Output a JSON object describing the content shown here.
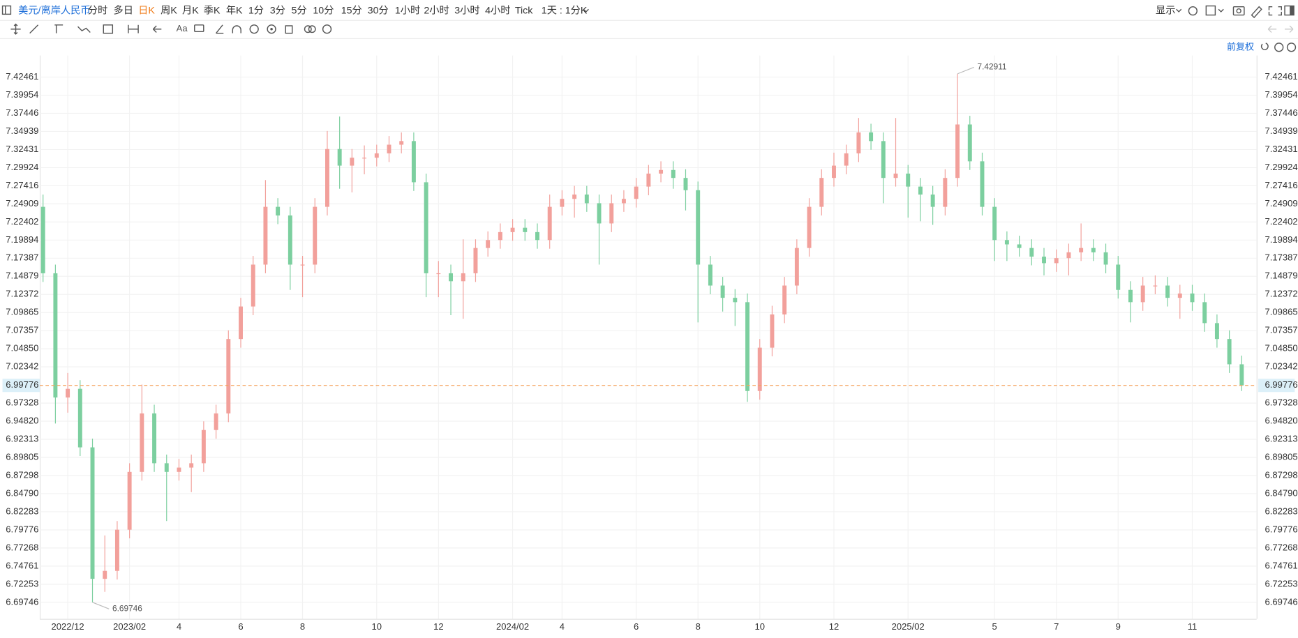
{
  "toolbar": {
    "symbol": "美元/离岸人民币",
    "periods": [
      "分时",
      "多日",
      "日K",
      "周K",
      "月K",
      "季K",
      "年K",
      "1分",
      "3分",
      "5分",
      "10分",
      "15分",
      "30分",
      "1小时",
      "2小时",
      "3小时",
      "4小时",
      "Tick"
    ],
    "active_period": 2,
    "interval": "1天 : 1分K",
    "display": "显示",
    "adjust": "前复权"
  },
  "chart_data": {
    "type": "candlestick",
    "categories": [
      null,
      null,
      "2022/12",
      null,
      null,
      null,
      null,
      "2023/02",
      null,
      null,
      null,
      "4",
      null,
      null,
      null,
      null,
      "6",
      null,
      null,
      null,
      null,
      "8",
      null,
      null,
      null,
      null,
      null,
      "10",
      null,
      null,
      null,
      null,
      "12",
      null,
      null,
      null,
      null,
      null,
      "2024/02",
      null,
      null,
      null,
      "4",
      null,
      null,
      null,
      null,
      null,
      "6",
      null,
      null,
      null,
      null,
      "8",
      null,
      null,
      null,
      null,
      "10",
      null,
      null,
      null,
      null,
      null,
      "12",
      null,
      null,
      null,
      null,
      null,
      "2025/02",
      null,
      null,
      null,
      null,
      null,
      null,
      "5",
      null,
      null,
      null,
      null,
      "7",
      null,
      null,
      null,
      null,
      "9",
      null,
      null,
      null,
      null,
      null,
      "11",
      null,
      null,
      null,
      null
    ],
    "open": [
      7.245,
      7.153,
      6.981,
      6.993,
      6.912,
      6.73,
      6.741,
      6.798,
      6.878,
      6.959,
      6.89,
      6.878,
      6.884,
      6.89,
      6.936,
      6.959,
      7.062,
      7.107,
      7.165,
      7.245,
      7.233,
      7.165,
      7.165,
      7.245,
      7.325,
      7.302,
      7.313,
      7.313,
      7.319,
      7.331,
      7.336,
      7.279,
      7.153,
      7.153,
      7.142,
      7.153,
      7.188,
      7.199,
      7.21,
      7.216,
      7.21,
      7.199,
      7.245,
      7.256,
      7.262,
      7.25,
      7.222,
      7.25,
      7.256,
      7.273,
      7.291,
      7.296,
      7.285,
      7.268,
      7.165,
      7.136,
      7.119,
      7.113,
      6.99,
      7.05,
      7.096,
      7.136,
      7.188,
      7.245,
      7.285,
      7.302,
      7.319,
      7.348,
      7.336,
      7.285,
      7.291,
      7.273,
      7.262,
      7.245,
      7.285,
      7.359,
      7.308,
      7.245,
      7.199,
      7.193,
      7.188,
      7.176,
      7.167,
      7.174,
      7.182,
      7.188,
      7.182,
      7.165,
      7.13,
      7.113,
      7.136,
      7.136,
      7.119,
      7.125,
      7.113,
      7.084,
      7.062,
      7.027
    ],
    "high": [
      7.262,
      7.165,
      7.015,
      7.005,
      6.924,
      6.79,
      6.81,
      6.89,
      6.999,
      6.971,
      6.902,
      6.896,
      6.902,
      6.948,
      6.971,
      7.074,
      7.119,
      7.177,
      7.282,
      7.257,
      7.245,
      7.177,
      7.257,
      7.35,
      7.37,
      7.325,
      7.33,
      7.331,
      7.343,
      7.348,
      7.348,
      7.291,
      7.17,
      7.165,
      7.2,
      7.2,
      7.211,
      7.222,
      7.228,
      7.228,
      7.222,
      7.262,
      7.268,
      7.274,
      7.274,
      7.262,
      7.262,
      7.268,
      7.285,
      7.303,
      7.308,
      7.308,
      7.297,
      7.28,
      7.177,
      7.148,
      7.131,
      7.125,
      7.062,
      7.108,
      7.148,
      7.2,
      7.257,
      7.297,
      7.32,
      7.331,
      7.368,
      7.36,
      7.348,
      7.368,
      7.303,
      7.285,
      7.274,
      7.297,
      7.42911,
      7.371,
      7.32,
      7.257,
      7.211,
      7.205,
      7.2,
      7.188,
      7.186,
      7.194,
      7.222,
      7.2,
      7.194,
      7.177,
      7.142,
      7.148,
      7.15,
      7.148,
      7.137,
      7.137,
      7.125,
      7.096,
      7.074,
      7.039
    ],
    "low": [
      7.141,
      6.945,
      6.96,
      6.9,
      6.69746,
      6.712,
      6.729,
      6.786,
      6.866,
      6.878,
      6.81,
      6.866,
      6.85,
      6.878,
      6.924,
      6.947,
      7.05,
      7.095,
      7.153,
      7.221,
      7.13,
      7.12,
      7.153,
      7.233,
      7.27,
      7.265,
      7.29,
      7.301,
      7.307,
      7.319,
      7.267,
      7.12,
      7.12,
      7.095,
      7.09,
      7.141,
      7.176,
      7.187,
      7.198,
      7.198,
      7.187,
      7.187,
      7.233,
      7.23,
      7.238,
      7.165,
      7.21,
      7.238,
      7.244,
      7.261,
      7.279,
      7.27,
      7.24,
      7.085,
      7.124,
      7.1,
      7.08,
      6.975,
      6.978,
      7.038,
      7.084,
      7.124,
      7.176,
      7.233,
      7.273,
      7.29,
      7.307,
      7.324,
      7.25,
      7.273,
      7.23,
      7.225,
      7.22,
      7.233,
      7.273,
      7.296,
      7.233,
      7.17,
      7.17,
      7.176,
      7.164,
      7.15,
      7.155,
      7.15,
      7.17,
      7.17,
      7.153,
      7.118,
      7.085,
      7.101,
      7.124,
      7.107,
      7.09,
      7.101,
      7.072,
      7.05,
      7.015,
      6.99
    ],
    "close": [
      7.153,
      6.981,
      6.993,
      6.912,
      6.73,
      6.741,
      6.798,
      6.878,
      6.959,
      6.89,
      6.878,
      6.884,
      6.89,
      6.936,
      6.959,
      7.062,
      7.107,
      7.165,
      7.245,
      7.233,
      7.165,
      7.165,
      7.245,
      7.325,
      7.302,
      7.313,
      7.313,
      7.319,
      7.331,
      7.336,
      7.279,
      7.153,
      7.153,
      7.142,
      7.153,
      7.188,
      7.199,
      7.21,
      7.216,
      7.21,
      7.199,
      7.245,
      7.256,
      7.262,
      7.25,
      7.222,
      7.25,
      7.256,
      7.273,
      7.291,
      7.296,
      7.285,
      7.268,
      7.165,
      7.136,
      7.119,
      7.113,
      6.99,
      7.05,
      7.096,
      7.136,
      7.188,
      7.245,
      7.285,
      7.302,
      7.319,
      7.348,
      7.336,
      7.285,
      7.291,
      7.273,
      7.262,
      7.245,
      7.285,
      7.359,
      7.308,
      7.245,
      7.199,
      7.193,
      7.188,
      7.176,
      7.167,
      7.174,
      7.182,
      7.188,
      7.182,
      7.165,
      7.13,
      7.113,
      7.136,
      7.136,
      7.119,
      7.125,
      7.113,
      7.084,
      7.062,
      7.027,
      6.99776
    ],
    "up_color": "#f2a09b",
    "down_color": "#7ccf9f",
    "last_price_color": "#f5a25d",
    "ylim": [
      6.6746,
      7.4544
    ],
    "yticks": [
      6.69746,
      6.72253,
      6.74761,
      6.77268,
      6.79776,
      6.82283,
      {
        "value": 6.8479,
        "label": "6.84790"
      },
      6.87298,
      6.89805,
      6.92313,
      {
        "value": 6.9482,
        "label": "6.94820"
      },
      6.97328,
      7.02342,
      {
        "value": 7.0485,
        "label": "7.04850"
      },
      7.07357,
      7.09865,
      7.12372,
      7.14879,
      7.17387,
      7.19894,
      7.22402,
      7.24909,
      7.27416,
      7.29924,
      7.32431,
      7.34939,
      7.37446,
      7.39954,
      7.42461
    ],
    "grid": true
  }
}
